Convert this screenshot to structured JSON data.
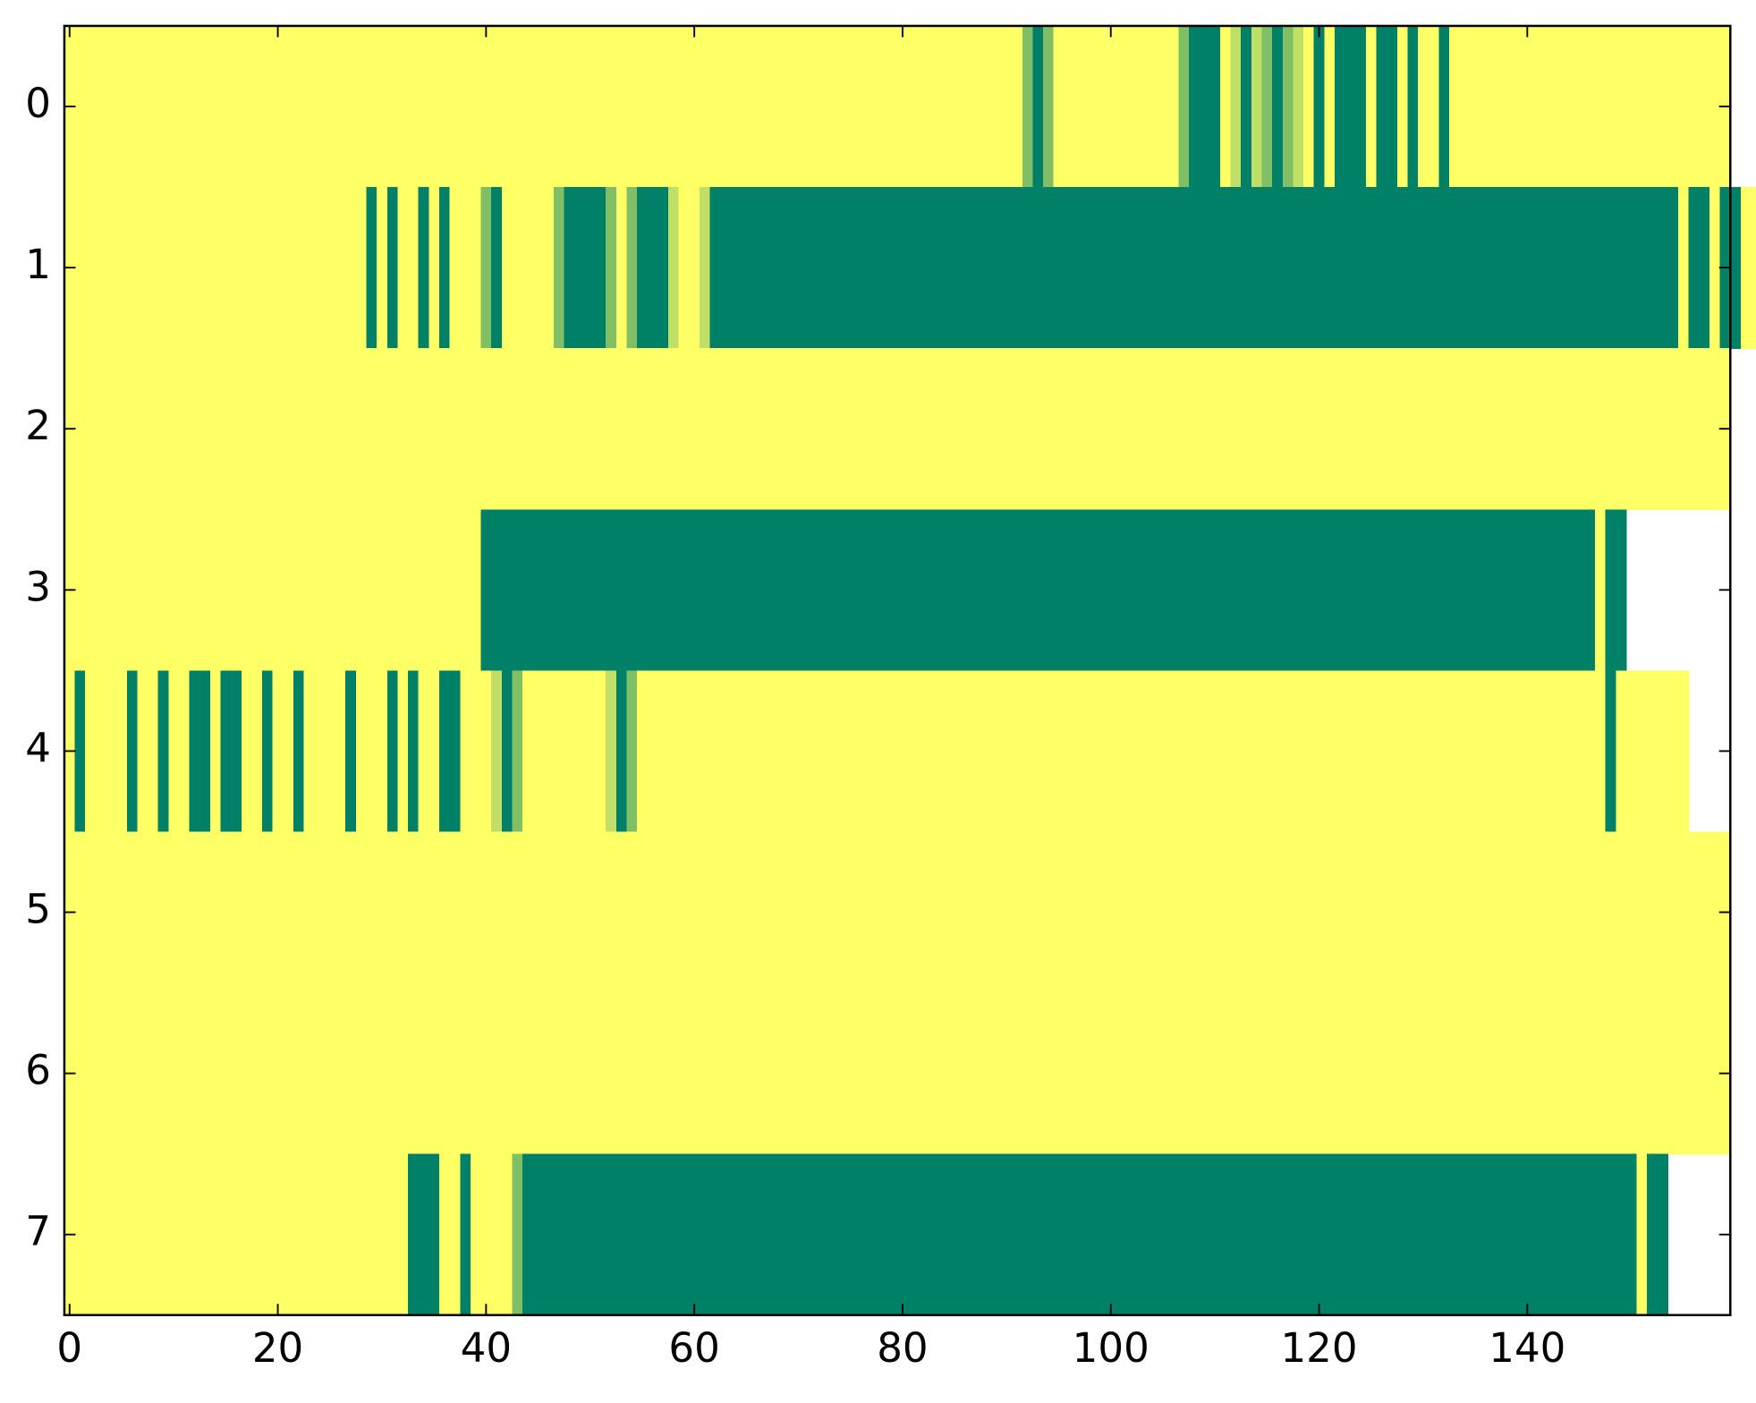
{
  "chart_data": {
    "type": "heatmap",
    "colormap": "summer",
    "xlim": [
      -0.5,
      159.5
    ],
    "ylim": [
      7.5,
      -0.5
    ],
    "xticks": [
      0,
      20,
      40,
      60,
      80,
      100,
      120,
      140
    ],
    "yticks": [
      0,
      1,
      2,
      3,
      4,
      5,
      6,
      7
    ],
    "values": [
      [
        1,
        1,
        1,
        1,
        1,
        1,
        1,
        1,
        1,
        1,
        1,
        1,
        1,
        1,
        1,
        1,
        1,
        1,
        1,
        1,
        1,
        1,
        1,
        1,
        1,
        1,
        1,
        1,
        1,
        1,
        1,
        1,
        1,
        1,
        1,
        1,
        1,
        1,
        1,
        1,
        1,
        1,
        1,
        1,
        1,
        1,
        1,
        1,
        1,
        1,
        1,
        1,
        1,
        1,
        1,
        1,
        1,
        1,
        1,
        1,
        1,
        1,
        1,
        1,
        1,
        1,
        1,
        1,
        1,
        1,
        1,
        1,
        1,
        1,
        1,
        1,
        1,
        1,
        1,
        1,
        1,
        1,
        1,
        1,
        1,
        1,
        1,
        1,
        1,
        1,
        1,
        1,
        0.5,
        0,
        0.5,
        1,
        1,
        1,
        1,
        1,
        1,
        1,
        1,
        1,
        1,
        1,
        1,
        0.5,
        0,
        0,
        0,
        1,
        0.75,
        0,
        0.75,
        0.5,
        0,
        0.5,
        0.75,
        1,
        0,
        1,
        0,
        0,
        0,
        1,
        0,
        0,
        1,
        0,
        1,
        1,
        0,
        1,
        1,
        1,
        1,
        1,
        1,
        1,
        1,
        1,
        1,
        1,
        1,
        1,
        1,
        1,
        1,
        1,
        1,
        1,
        1,
        1,
        1,
        1,
        1,
        1,
        1,
        1
      ],
      [
        1,
        1,
        1,
        1,
        1,
        1,
        1,
        1,
        1,
        1,
        1,
        1,
        1,
        1,
        1,
        1,
        1,
        1,
        1,
        1,
        1,
        1,
        1,
        1,
        1,
        1,
        1,
        1,
        1,
        0,
        1,
        0,
        1,
        1,
        0,
        1,
        0,
        1,
        1,
        1,
        0.5,
        0,
        1,
        1,
        1,
        1,
        1,
        0.5,
        0,
        0,
        0,
        0,
        0.5,
        1,
        0.5,
        0,
        0,
        0,
        0.75,
        1,
        1,
        0.75,
        0,
        0,
        0,
        0,
        0,
        0,
        0,
        0,
        0,
        0,
        0,
        0,
        0,
        0,
        0,
        0,
        0,
        0,
        0,
        0,
        0,
        0,
        0,
        0,
        0,
        0,
        0,
        0,
        0,
        0,
        0,
        0,
        0,
        0,
        0,
        0,
        0,
        0,
        0,
        0,
        0,
        0,
        0,
        0,
        0,
        0,
        0,
        0,
        0,
        0,
        0,
        0,
        0,
        0,
        0,
        0,
        0,
        0,
        0,
        0,
        0,
        0,
        0,
        0,
        0,
        0,
        0,
        0,
        0,
        0,
        0,
        0,
        0,
        0,
        0,
        0,
        0,
        0,
        0,
        0,
        0,
        0,
        0,
        0,
        0,
        0,
        0,
        0,
        0,
        0,
        0,
        0,
        0,
        1,
        0,
        0,
        1,
        0,
        0,
        1,
        1,
        1
      ],
      [
        1,
        1,
        1,
        1,
        1,
        1,
        1,
        1,
        1,
        1,
        1,
        1,
        1,
        1,
        1,
        1,
        1,
        1,
        1,
        1,
        1,
        1,
        1,
        1,
        1,
        1,
        1,
        1,
        1,
        1,
        1,
        1,
        1,
        1,
        1,
        1,
        1,
        1,
        1,
        1,
        1,
        1,
        1,
        1,
        1,
        1,
        1,
        1,
        1,
        1,
        1,
        1,
        1,
        1,
        1,
        1,
        1,
        1,
        1,
        1,
        1,
        1,
        1,
        1,
        1,
        1,
        1,
        1,
        1,
        1,
        1,
        1,
        1,
        1,
        1,
        1,
        1,
        1,
        1,
        1,
        1,
        1,
        1,
        1,
        1,
        1,
        1,
        1,
        1,
        1,
        1,
        1,
        1,
        1,
        1,
        1,
        1,
        1,
        1,
        1,
        1,
        1,
        1,
        1,
        1,
        1,
        1,
        1,
        1,
        1,
        1,
        1,
        1,
        1,
        1,
        1,
        1,
        1,
        1,
        1,
        1,
        1,
        1,
        1,
        1,
        1,
        1,
        1,
        1,
        1,
        1,
        1,
        1,
        1,
        1,
        1,
        1,
        1,
        1,
        1,
        1,
        1,
        1,
        1,
        1,
        1,
        1,
        1,
        1,
        1,
        1,
        1,
        1,
        1,
        1,
        1,
        1,
        1,
        1,
        1
      ],
      [
        1,
        1,
        1,
        1,
        1,
        1,
        1,
        1,
        1,
        1,
        1,
        1,
        1,
        1,
        1,
        1,
        1,
        1,
        1,
        1,
        1,
        1,
        1,
        1,
        1,
        1,
        1,
        1,
        1,
        1,
        1,
        1,
        1,
        1,
        1,
        1,
        1,
        1,
        1,
        1,
        0,
        0,
        0,
        0,
        0,
        0,
        0,
        0,
        0,
        0,
        0,
        0,
        0,
        0,
        0,
        0,
        0,
        0,
        0,
        0,
        0,
        0,
        0,
        0,
        0,
        0,
        0,
        0,
        0,
        0,
        0,
        0,
        0,
        0,
        0,
        0,
        0,
        0,
        0,
        0,
        0,
        0,
        0,
        0,
        0,
        0,
        0,
        0,
        0,
        0,
        0,
        0,
        0,
        0,
        0,
        0,
        0,
        0,
        0,
        0,
        0,
        0,
        0,
        0,
        0,
        0,
        0,
        0,
        0,
        0,
        0,
        0,
        0,
        0,
        0,
        0,
        0,
        0,
        0,
        0,
        0,
        0,
        0,
        0,
        0,
        0,
        0,
        0,
        0,
        0,
        0,
        0,
        0,
        0,
        0,
        0,
        0,
        0,
        0,
        0,
        0,
        0,
        0,
        0,
        0,
        0,
        0,
        1,
        0,
        0
      ],
      [
        1,
        0,
        1,
        1,
        1,
        1,
        0,
        1,
        1,
        0,
        1,
        1,
        0,
        0,
        1,
        0,
        0,
        1,
        1,
        0,
        1,
        1,
        0,
        1,
        1,
        1,
        1,
        0,
        1,
        1,
        1,
        0,
        1,
        0,
        1,
        1,
        0,
        0,
        1,
        1,
        1,
        0.75,
        0,
        0.5,
        1,
        1,
        1,
        1,
        1,
        1,
        1,
        1,
        0.75,
        0,
        0.5,
        1,
        1,
        1,
        1,
        1,
        1,
        1,
        1,
        1,
        1,
        1,
        1,
        1,
        1,
        1,
        1,
        1,
        1,
        1,
        1,
        1,
        1,
        1,
        1,
        1,
        1,
        1,
        1,
        1,
        1,
        1,
        1,
        1,
        1,
        1,
        1,
        1,
        1,
        1,
        1,
        1,
        1,
        1,
        1,
        1,
        1,
        1,
        1,
        1,
        1,
        1,
        1,
        1,
        1,
        1,
        1,
        1,
        1,
        1,
        1,
        1,
        1,
        1,
        1,
        1,
        1,
        1,
        1,
        1,
        1,
        1,
        1,
        1,
        1,
        1,
        1,
        1,
        1,
        1,
        1,
        1,
        1,
        1,
        1,
        1,
        1,
        1,
        1,
        1,
        1,
        1,
        1,
        1,
        0,
        1,
        1,
        1,
        1,
        1,
        1,
        1
      ],
      [
        1,
        1,
        1,
        1,
        1,
        1,
        1,
        1,
        1,
        1,
        1,
        1,
        1,
        1,
        1,
        1,
        1,
        1,
        1,
        1,
        1,
        1,
        1,
        1,
        1,
        1,
        1,
        1,
        1,
        1,
        1,
        1,
        1,
        1,
        1,
        1,
        1,
        1,
        1,
        1,
        1,
        1,
        1,
        1,
        1,
        1,
        1,
        1,
        1,
        1,
        1,
        1,
        1,
        1,
        1,
        1,
        1,
        1,
        1,
        1,
        1,
        1,
        1,
        1,
        1,
        1,
        1,
        1,
        1,
        1,
        1,
        1,
        1,
        1,
        1,
        1,
        1,
        1,
        1,
        1,
        1,
        1,
        1,
        1,
        1,
        1,
        1,
        1,
        1,
        1,
        1,
        1,
        1,
        1,
        1,
        1,
        1,
        1,
        1,
        1,
        1,
        1,
        1,
        1,
        1,
        1,
        1,
        1,
        1,
        1,
        1,
        1,
        1,
        1,
        1,
        1,
        1,
        1,
        1,
        1,
        1,
        1,
        1,
        1,
        1,
        1,
        1,
        1,
        1,
        1,
        1,
        1,
        1,
        1,
        1,
        1,
        1,
        1,
        1,
        1,
        1,
        1,
        1,
        1,
        1,
        1,
        1,
        1,
        1,
        1,
        1,
        1,
        1,
        1,
        1,
        1,
        1,
        1,
        1,
        1
      ],
      [
        1,
        1,
        1,
        1,
        1,
        1,
        1,
        1,
        1,
        1,
        1,
        1,
        1,
        1,
        1,
        1,
        1,
        1,
        1,
        1,
        1,
        1,
        1,
        1,
        1,
        1,
        1,
        1,
        1,
        1,
        1,
        1,
        1,
        1,
        1,
        1,
        1,
        1,
        1,
        1,
        1,
        1,
        1,
        1,
        1,
        1,
        1,
        1,
        1,
        1,
        1,
        1,
        1,
        1,
        1,
        1,
        1,
        1,
        1,
        1,
        1,
        1,
        1,
        1,
        1,
        1,
        1,
        1,
        1,
        1,
        1,
        1,
        1,
        1,
        1,
        1,
        1,
        1,
        1,
        1,
        1,
        1,
        1,
        1,
        1,
        1,
        1,
        1,
        1,
        1,
        1,
        1,
        1,
        1,
        1,
        1,
        1,
        1,
        1,
        1,
        1,
        1,
        1,
        1,
        1,
        1,
        1,
        1,
        1,
        1,
        1,
        1,
        1,
        1,
        1,
        1,
        1,
        1,
        1,
        1,
        1,
        1,
        1,
        1,
        1,
        1,
        1,
        1,
        1,
        1,
        1,
        1,
        1,
        1,
        1,
        1,
        1,
        1,
        1,
        1,
        1,
        1,
        1,
        1,
        1,
        1,
        1,
        1,
        1,
        1,
        1,
        1,
        1,
        1,
        1,
        1,
        1,
        1,
        1,
        1
      ],
      [
        1,
        1,
        1,
        1,
        1,
        1,
        1,
        1,
        1,
        1,
        1,
        1,
        1,
        1,
        1,
        1,
        1,
        1,
        1,
        1,
        1,
        1,
        1,
        1,
        1,
        1,
        1,
        1,
        1,
        1,
        1,
        1,
        1,
        0,
        0,
        0,
        1,
        1,
        0,
        1,
        1,
        1,
        1,
        0.5,
        0,
        0,
        0,
        0,
        0,
        0,
        0,
        0,
        0,
        0,
        0,
        0,
        0,
        0,
        0,
        0,
        0,
        0,
        0,
        0,
        0,
        0,
        0,
        0,
        0,
        0,
        0,
        0,
        0,
        0,
        0,
        0,
        0,
        0,
        0,
        0,
        0,
        0,
        0,
        0,
        0,
        0,
        0,
        0,
        0,
        0,
        0,
        0,
        0,
        0,
        0,
        0,
        0,
        0,
        0,
        0,
        0,
        0,
        0,
        0,
        0,
        0,
        0,
        0,
        0,
        0,
        0,
        0,
        0,
        0,
        0,
        0,
        0,
        0,
        0,
        0,
        0,
        0,
        0,
        0,
        0,
        0,
        0,
        0,
        0,
        0,
        0,
        0,
        0,
        0,
        0,
        0,
        0,
        0,
        0,
        0,
        0,
        0,
        0,
        0,
        0,
        0,
        0,
        0,
        0,
        0,
        0,
        1,
        0,
        0
      ]
    ]
  }
}
